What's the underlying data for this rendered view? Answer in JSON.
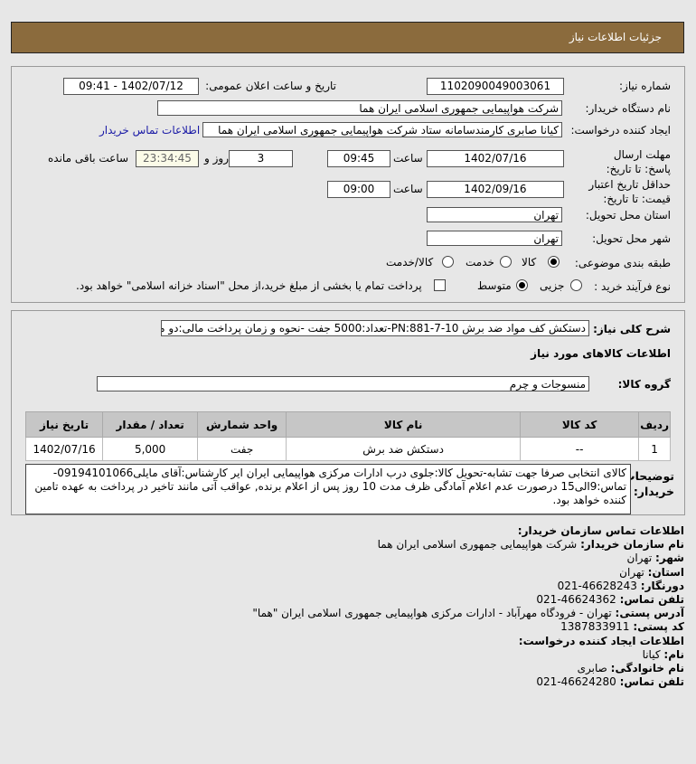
{
  "header": {
    "title": "جزئیات اطلاعات نیاز"
  },
  "form": {
    "need_number_label": "شماره نیاز:",
    "need_number": "1102090049003061",
    "announce_label": "تاریخ و ساعت اعلان عمومی:",
    "announce_value": "1402/07/12 - 09:41",
    "buyer_org_label": "نام دستگاه خریدار:",
    "buyer_org": "شرکت هواپیمایی جمهوری اسلامی ایران هما",
    "creator_label": "ایجاد کننده درخواست:",
    "creator": "کیانا صابری کارمندسامانه ستاد شرکت هواپیمایی جمهوری اسلامی ایران هما",
    "contact_link": "اطلاعات تماس خریدار",
    "deadline_label": "مهلت ارسال پاسخ: تا تاریخ:",
    "deadline_date": "1402/07/16",
    "time_label": "ساعت",
    "deadline_time": "09:45",
    "days": "3",
    "days_label": "روز و",
    "remaining": "23:34:45",
    "remaining_label": "ساعت باقی مانده",
    "validity_label": "حداقل تاریخ اعتبار قیمت: تا تاریخ:",
    "validity_date": "1402/09/16",
    "validity_time": "09:00",
    "province_label": "استان محل تحویل:",
    "province": "تهران",
    "city_label": "شهر محل تحویل:",
    "city": "تهران",
    "category_label": "طبقه بندی موضوعی:",
    "category_options": [
      "کالا",
      "خدمت",
      "کالا/خدمت"
    ],
    "category_selected": "کالا",
    "process_label": "نوع فرآیند خرید :",
    "process_options": [
      "جزیی",
      "متوسط"
    ],
    "process_selected": "متوسط",
    "payment_note": "پرداخت تمام یا بخشی از مبلغ خرید،از محل \"اسناد خزانه اسلامی\" خواهد بود."
  },
  "details": {
    "summary_label": "شرح کلی نیاز:",
    "summary": "دستکش کف مواد ضد برش PN:881-7-10-تعداد:5000 جفت -نحوه و زمان پرداخت مالی:دو ماه",
    "goods_title": "اطلاعات کالاهای مورد نیاز",
    "group_label": "گروه کالا:",
    "group": "منسوجات و چرم",
    "table": {
      "headers": [
        "ردیف",
        "کد کالا",
        "نام کالا",
        "واحد شمارش",
        "تعداد / مقدار",
        "تاریخ نیاز"
      ],
      "rows": [
        [
          "1",
          "--",
          "دستکش ضد برش",
          "جفت",
          "5,000",
          "1402/07/16"
        ]
      ]
    },
    "notes_label": "توضیحات خریدار:",
    "notes": "کالای انتخابی صرفا جهت تشابه-تحویل کالا:جلوی درب ادارات مرکزی هواپیمایی ایران ایر کارشناس:آقای مایلی09194101066-تماس:9الی15 درصورت عدم اعلام آمادگی ظرف مدت 10 روز پس از اعلام برنده, عواقب آتی مانند تاخیر در پرداخت به عهده تامین کننده خواهد بود."
  },
  "contact": {
    "title": "اطلاعات تماس سازمان خریدار:",
    "rows": [
      {
        "label": "نام سازمان خریدار:",
        "value": "شرکت هواپیمایی جمهوری اسلامی ایران هما"
      },
      {
        "label": "شهر:",
        "value": "تهران"
      },
      {
        "label": "استان:",
        "value": "تهران"
      },
      {
        "label": "دورنگار:",
        "value": "46628243-021"
      },
      {
        "label": "تلفن تماس:",
        "value": "46624362-021"
      },
      {
        "label": "آدرس پستی:",
        "value": "تهران - فرودگاه مهرآباد - ادارات مرکزی هواپیمایی جمهوری اسلامی ایران \"هما\""
      },
      {
        "label": "کد پستی:",
        "value": "1387833911"
      }
    ],
    "creator_title": "اطلاعات ایجاد کننده درخواست:",
    "creator_rows": [
      {
        "label": "نام:",
        "value": "کیانا"
      },
      {
        "label": "نام خانوادگی:",
        "value": "صابری"
      },
      {
        "label": "تلفن تماس:",
        "value": "46624280-021"
      }
    ]
  }
}
